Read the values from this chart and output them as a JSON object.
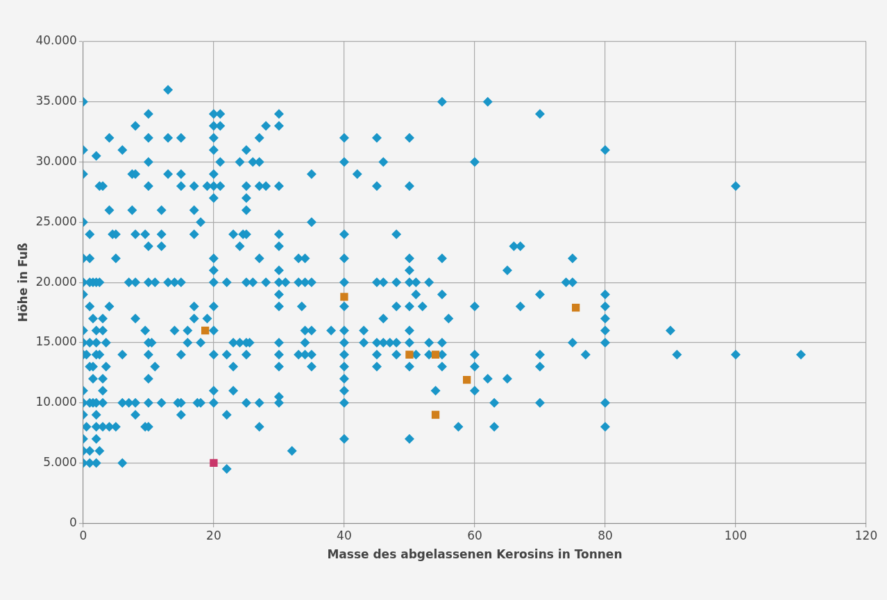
{
  "chart_data": {
    "type": "scatter",
    "xlabel": "Masse des abgelassenen Kerosins in Tonnen",
    "ylabel": "Höhe in Fuß",
    "xlim": [
      0,
      120
    ],
    "xticks": [
      0,
      20,
      40,
      60,
      80,
      100,
      120
    ],
    "ylim": [
      0,
      40000
    ],
    "yticks": [
      {
        "value": 0,
        "label": "0"
      },
      {
        "value": 5000,
        "label": "5.000"
      },
      {
        "value": 10000,
        "label": "10.000"
      },
      {
        "value": 15000,
        "label": "15.000"
      },
      {
        "value": 20000,
        "label": "20.000"
      },
      {
        "value": 25000,
        "label": "25.000"
      },
      {
        "value": 30000,
        "label": "30.000"
      },
      {
        "value": 35000,
        "label": "35.000"
      },
      {
        "value": 40000,
        "label": "40.000"
      }
    ],
    "grid": true,
    "legend": false,
    "series": [
      {
        "color": "#1a96c8",
        "marker": "diamond",
        "x": [
          13,
          0,
          55,
          62,
          10,
          20,
          21,
          30,
          70,
          8,
          21,
          28,
          30,
          20,
          4,
          10,
          13,
          15,
          20,
          27,
          40,
          45,
          50,
          0,
          6,
          20,
          25,
          80,
          2,
          10,
          21,
          24,
          26,
          27,
          40,
          46,
          60,
          0,
          7.5,
          8,
          13,
          15,
          20,
          35,
          42,
          2.5,
          3,
          10,
          15,
          17,
          19,
          20,
          21,
          25,
          27,
          28,
          30,
          45,
          50,
          100,
          20,
          25,
          4,
          7.5,
          12,
          17,
          25,
          0,
          18,
          35,
          1,
          4.5,
          5,
          8,
          9.5,
          12,
          17,
          23,
          24.5,
          25,
          30,
          40,
          48,
          10,
          12,
          24,
          30,
          66,
          67,
          0,
          1,
          5,
          20,
          27,
          33,
          34,
          40,
          50,
          55,
          75,
          20,
          30,
          50,
          65,
          0,
          1,
          1.5,
          2,
          2.5,
          7,
          8,
          10,
          11,
          13,
          14,
          15,
          20,
          22,
          25,
          26,
          28,
          30,
          31,
          33,
          34,
          35,
          40,
          45,
          46,
          48,
          50,
          51,
          53,
          74,
          75,
          0,
          30,
          51,
          55,
          70,
          80,
          1,
          4,
          17,
          20,
          30,
          33.5,
          40,
          48,
          50,
          52,
          60,
          67,
          80,
          1.5,
          3,
          8,
          17,
          19,
          46,
          56,
          80,
          0,
          2,
          3,
          9.5,
          14,
          16,
          20,
          34,
          35,
          38,
          40,
          43,
          50,
          80,
          90,
          0,
          1,
          2,
          3.5,
          10,
          10.5,
          16,
          18,
          23,
          24,
          25,
          25.5,
          30,
          34,
          40,
          43,
          45,
          46,
          47,
          48,
          50,
          53,
          55,
          75,
          80,
          0,
          0.5,
          2,
          2.5,
          6,
          10,
          15,
          20,
          22,
          25,
          30,
          33,
          34,
          35,
          40,
          45,
          48,
          51,
          53,
          55,
          60,
          70,
          77,
          91,
          100,
          110,
          1,
          1.5,
          3.5,
          11,
          23,
          30,
          35,
          40,
          45,
          50,
          55,
          60,
          70,
          1.5,
          3,
          10,
          40,
          62,
          65,
          0,
          3,
          20,
          23,
          40,
          54,
          60,
          30,
          0,
          1,
          1.5,
          2,
          3,
          6,
          7,
          8,
          10,
          12,
          14.5,
          15,
          17.5,
          18,
          20,
          25,
          27,
          30,
          40,
          63,
          70,
          80,
          0,
          2,
          8,
          15,
          22,
          0.5,
          2,
          3,
          4,
          5,
          9.5,
          10,
          27,
          57.5,
          63,
          80,
          0,
          2,
          40,
          50,
          0,
          1,
          2.5,
          32,
          0,
          1,
          2,
          6,
          22
        ],
        "values": [
          36000,
          35000,
          35000,
          35000,
          34000,
          34000,
          34000,
          34000,
          34000,
          33000,
          33000,
          33000,
          33000,
          33000,
          32000,
          32000,
          32000,
          32000,
          32000,
          32000,
          32000,
          32000,
          32000,
          31000,
          31000,
          31000,
          31000,
          31000,
          30500,
          30000,
          30000,
          30000,
          30000,
          30000,
          30000,
          30000,
          30000,
          29000,
          29000,
          29000,
          29000,
          29000,
          29000,
          29000,
          29000,
          28000,
          28000,
          28000,
          28000,
          28000,
          28000,
          28000,
          28000,
          28000,
          28000,
          28000,
          28000,
          28000,
          28000,
          28000,
          27000,
          27000,
          26000,
          26000,
          26000,
          26000,
          26000,
          25000,
          25000,
          25000,
          24000,
          24000,
          24000,
          24000,
          24000,
          24000,
          24000,
          24000,
          24000,
          24000,
          24000,
          24000,
          24000,
          23000,
          23000,
          23000,
          23000,
          23000,
          23000,
          22000,
          22000,
          22000,
          22000,
          22000,
          22000,
          22000,
          22000,
          22000,
          22000,
          22000,
          21000,
          21000,
          21000,
          21000,
          20000,
          20000,
          20000,
          20000,
          20000,
          20000,
          20000,
          20000,
          20000,
          20000,
          20000,
          20000,
          20000,
          20000,
          20000,
          20000,
          20000,
          20000,
          20000,
          20000,
          20000,
          20000,
          20000,
          20000,
          20000,
          20000,
          20000,
          20000,
          20000,
          20000,
          20000,
          19000,
          19000,
          19000,
          19000,
          19000,
          19000,
          18000,
          18000,
          18000,
          18000,
          18000,
          18000,
          18000,
          18000,
          18000,
          18000,
          18000,
          18000,
          18000,
          17000,
          17000,
          17000,
          17000,
          17000,
          17000,
          17000,
          17000,
          16000,
          16000,
          16000,
          16000,
          16000,
          16000,
          16000,
          16000,
          16000,
          16000,
          16000,
          16000,
          16000,
          16000,
          16000,
          15000,
          15000,
          15000,
          15000,
          15000,
          15000,
          15000,
          15000,
          15000,
          15000,
          15000,
          15000,
          15000,
          15000,
          15000,
          15000,
          15000,
          15000,
          15000,
          15000,
          15000,
          15000,
          15000,
          15000,
          15000,
          14000,
          14000,
          14000,
          14000,
          14000,
          14000,
          14000,
          14000,
          14000,
          14000,
          14000,
          14000,
          14000,
          14000,
          14000,
          14000,
          14000,
          14000,
          14000,
          14000,
          14000,
          14000,
          14000,
          14000,
          14000,
          14000,
          13000,
          13000,
          13000,
          13000,
          13000,
          13000,
          13000,
          13000,
          13000,
          13000,
          13000,
          13000,
          13000,
          12000,
          12000,
          12000,
          12000,
          12000,
          12000,
          11000,
          11000,
          11000,
          11000,
          11000,
          11000,
          11000,
          10500,
          10000,
          10000,
          10000,
          10000,
          10000,
          10000,
          10000,
          10000,
          10000,
          10000,
          10000,
          10000,
          10000,
          10000,
          10000,
          10000,
          10000,
          10000,
          10000,
          10000,
          10000,
          10000,
          9000,
          9000,
          9000,
          9000,
          9000,
          8000,
          8000,
          8000,
          8000,
          8000,
          8000,
          8000,
          8000,
          8000,
          8000,
          8000,
          7000,
          7000,
          7000,
          7000,
          6000,
          6000,
          6000,
          6000,
          5000,
          5000,
          5000,
          5000,
          4500
        ]
      },
      {
        "color": "#d17f1b",
        "marker": "square",
        "x": [
          18.7,
          40,
          50,
          54,
          58.8,
          54,
          75.5
        ],
        "values": [
          16000,
          18800,
          14000,
          14000,
          11900,
          9000,
          17900
        ]
      },
      {
        "color": "#c9376a",
        "marker": "square",
        "x": [
          20
        ],
        "values": [
          5000
        ]
      }
    ]
  }
}
